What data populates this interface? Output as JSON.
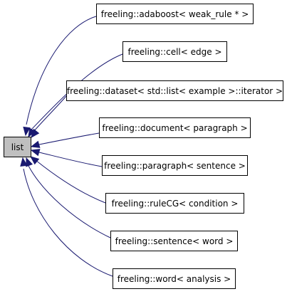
{
  "diagram": {
    "root": {
      "label": "list"
    },
    "children": [
      {
        "label": "freeling::adaboost< weak_rule * >"
      },
      {
        "label": "freeling::cell< edge >"
      },
      {
        "label": "freeling::dataset< std::list< example >::iterator >"
      },
      {
        "label": "freeling::document< paragraph >"
      },
      {
        "label": "freeling::paragraph< sentence >"
      },
      {
        "label": "freeling::ruleCG< condition >"
      },
      {
        "label": "freeling::sentence< word >"
      },
      {
        "label": "freeling::word< analysis >"
      }
    ],
    "colors": {
      "edge": "#191970",
      "root_fill": "#bfbfbf",
      "node_fill": "#ffffff",
      "border": "#000000"
    }
  }
}
